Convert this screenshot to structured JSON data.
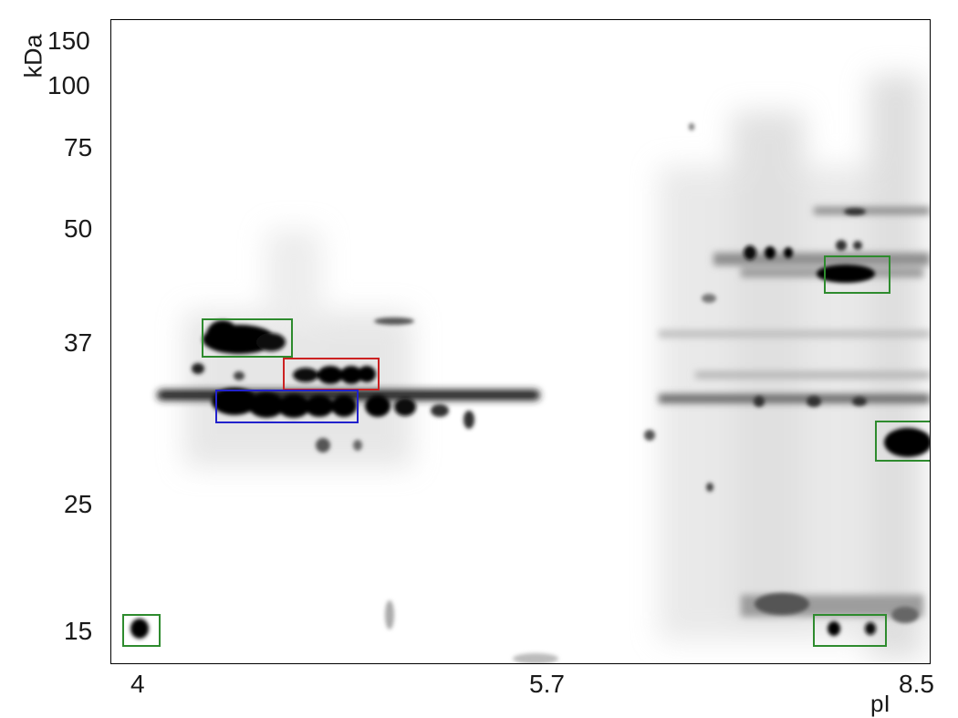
{
  "y_axis": {
    "unit": "kDa",
    "ticks": [
      "150",
      "100",
      "75",
      "50",
      "37",
      "25",
      "15"
    ]
  },
  "x_axis": {
    "unit": "pI",
    "ticks": [
      "4",
      "5.7",
      "8.5"
    ]
  },
  "colors": {
    "green_box": "#2e8b2e",
    "red_box": "#cc2222",
    "blue_box": "#2222cc",
    "spot": "#000000"
  }
}
